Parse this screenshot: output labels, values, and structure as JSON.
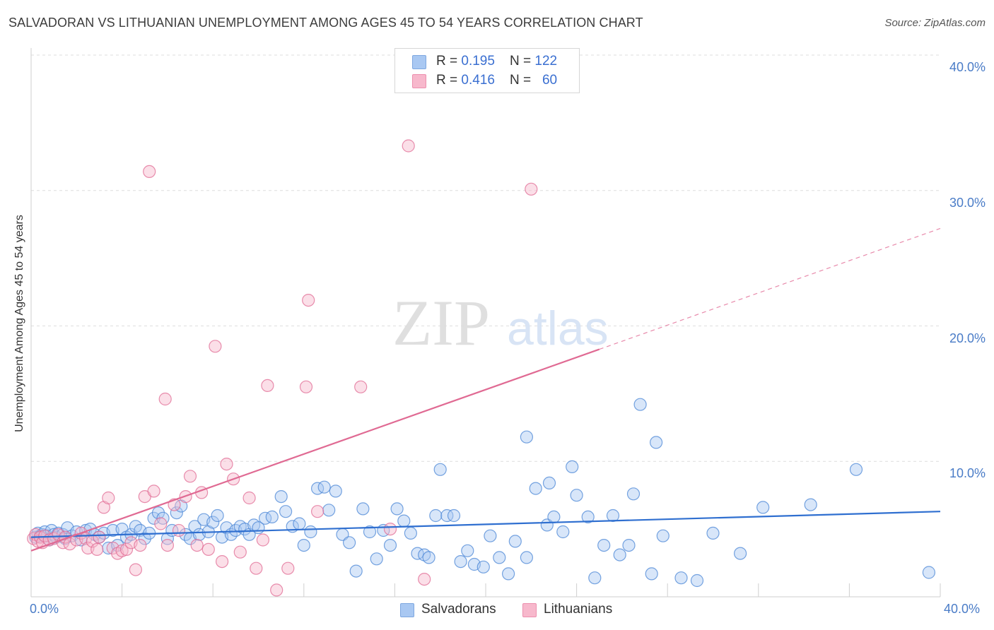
{
  "header": {
    "title": "SALVADORAN VS LITHUANIAN UNEMPLOYMENT AMONG AGES 45 TO 54 YEARS CORRELATION CHART",
    "source": "Source: ZipAtlas.com"
  },
  "watermark": {
    "zip": "ZIP",
    "atlas": "atlas"
  },
  "legend_top": {
    "rows": [
      {
        "r_label": "R = ",
        "r_value": "0.195",
        "n_label": "N = ",
        "n_value": "122",
        "color": "#a9c8f2"
      },
      {
        "r_label": "R = ",
        "r_value": "0.416",
        "n_label": "N = ",
        "n_value": "60",
        "color": "#f7b8cc"
      }
    ]
  },
  "legend_bottom": [
    {
      "label": "Salvadorans",
      "color": "#a9c8f2"
    },
    {
      "label": "Lithuanians",
      "color": "#f7b8cc"
    }
  ],
  "chart_data": {
    "type": "scatter",
    "title": "SALVADORAN VS LITHUANIAN UNEMPLOYMENT AMONG AGES 45 TO 54 YEARS CORRELATION CHART",
    "xlabel": "",
    "ylabel": "Unemployment Among Ages 45 to 54 years",
    "xlim": [
      0,
      40
    ],
    "ylim": [
      0,
      40
    ],
    "x_tick_labels": [
      "0.0%",
      "40.0%"
    ],
    "y_ticks": [
      10,
      20,
      30,
      40
    ],
    "y_tick_labels": [
      "10.0%",
      "20.0%",
      "30.0%",
      "40.0%"
    ],
    "grid": true,
    "legend_position": "top-center",
    "series": [
      {
        "name": "Salvadorans",
        "color": "#4a86d6",
        "fill": "#a9c8f2",
        "trend": {
          "x": [
            0,
            40
          ],
          "y": [
            4.4,
            6.3
          ],
          "style": "solid"
        },
        "points": [
          [
            0.2,
            4.4
          ],
          [
            0.3,
            4.7
          ],
          [
            0.4,
            4.5
          ],
          [
            0.5,
            4.6
          ],
          [
            0.6,
            4.8
          ],
          [
            0.7,
            4.5
          ],
          [
            0.8,
            4.2
          ],
          [
            0.9,
            4.9
          ],
          [
            1.0,
            4.6
          ],
          [
            1.1,
            4.4
          ],
          [
            1.2,
            4.7
          ],
          [
            1.4,
            4.6
          ],
          [
            1.5,
            4.3
          ],
          [
            1.6,
            5.1
          ],
          [
            1.8,
            4.5
          ],
          [
            2.0,
            4.8
          ],
          [
            2.2,
            4.2
          ],
          [
            2.4,
            4.9
          ],
          [
            2.6,
            5.0
          ],
          [
            2.8,
            4.6
          ],
          [
            3.0,
            4.4
          ],
          [
            3.2,
            4.7
          ],
          [
            3.4,
            3.6
          ],
          [
            3.6,
            4.9
          ],
          [
            3.8,
            3.8
          ],
          [
            4.0,
            5.0
          ],
          [
            4.2,
            4.4
          ],
          [
            4.4,
            4.6
          ],
          [
            4.6,
            5.2
          ],
          [
            4.8,
            4.9
          ],
          [
            5.0,
            4.3
          ],
          [
            5.2,
            4.7
          ],
          [
            5.4,
            5.8
          ],
          [
            5.6,
            6.2
          ],
          [
            5.8,
            5.8
          ],
          [
            6.0,
            4.3
          ],
          [
            6.2,
            4.9
          ],
          [
            6.4,
            6.2
          ],
          [
            6.6,
            6.7
          ],
          [
            6.8,
            4.6
          ],
          [
            7.0,
            4.3
          ],
          [
            7.2,
            5.2
          ],
          [
            7.4,
            4.6
          ],
          [
            7.6,
            5.7
          ],
          [
            7.8,
            4.8
          ],
          [
            8.0,
            5.5
          ],
          [
            8.2,
            6.0
          ],
          [
            8.4,
            4.4
          ],
          [
            8.6,
            5.1
          ],
          [
            8.8,
            4.6
          ],
          [
            9.0,
            4.9
          ],
          [
            9.2,
            5.2
          ],
          [
            9.4,
            5.0
          ],
          [
            9.6,
            4.6
          ],
          [
            9.8,
            5.3
          ],
          [
            10.0,
            5.1
          ],
          [
            10.3,
            5.8
          ],
          [
            10.6,
            5.9
          ],
          [
            11.0,
            7.4
          ],
          [
            11.2,
            6.3
          ],
          [
            11.5,
            5.2
          ],
          [
            11.8,
            5.4
          ],
          [
            12.0,
            3.8
          ],
          [
            12.3,
            4.8
          ],
          [
            12.6,
            8.0
          ],
          [
            12.9,
            8.1
          ],
          [
            13.1,
            6.4
          ],
          [
            13.4,
            7.8
          ],
          [
            13.7,
            4.6
          ],
          [
            14.0,
            4.0
          ],
          [
            14.3,
            1.9
          ],
          [
            14.6,
            6.5
          ],
          [
            14.9,
            4.8
          ],
          [
            15.2,
            2.8
          ],
          [
            15.5,
            4.9
          ],
          [
            15.8,
            3.8
          ],
          [
            16.1,
            6.5
          ],
          [
            16.4,
            5.6
          ],
          [
            16.7,
            4.7
          ],
          [
            17.0,
            3.2
          ],
          [
            17.3,
            3.1
          ],
          [
            17.5,
            2.9
          ],
          [
            17.8,
            6.0
          ],
          [
            18.0,
            9.4
          ],
          [
            18.3,
            6.0
          ],
          [
            18.6,
            6.0
          ],
          [
            18.9,
            2.6
          ],
          [
            19.2,
            3.4
          ],
          [
            19.5,
            2.4
          ],
          [
            19.9,
            2.2
          ],
          [
            20.2,
            4.5
          ],
          [
            20.6,
            2.9
          ],
          [
            21.0,
            1.7
          ],
          [
            21.3,
            4.1
          ],
          [
            21.8,
            11.8
          ],
          [
            21.8,
            2.9
          ],
          [
            22.2,
            8.0
          ],
          [
            22.7,
            5.3
          ],
          [
            22.8,
            8.4
          ],
          [
            23.0,
            5.9
          ],
          [
            23.4,
            4.8
          ],
          [
            23.8,
            9.6
          ],
          [
            24.0,
            7.5
          ],
          [
            24.5,
            5.9
          ],
          [
            24.8,
            1.4
          ],
          [
            25.2,
            3.8
          ],
          [
            25.6,
            6.0
          ],
          [
            25.9,
            3.1
          ],
          [
            26.3,
            3.8
          ],
          [
            26.5,
            7.6
          ],
          [
            26.8,
            14.2
          ],
          [
            27.3,
            1.7
          ],
          [
            27.5,
            11.4
          ],
          [
            27.8,
            4.5
          ],
          [
            28.6,
            1.4
          ],
          [
            29.3,
            1.2
          ],
          [
            30.0,
            4.7
          ],
          [
            31.2,
            3.2
          ],
          [
            32.2,
            6.6
          ],
          [
            34.3,
            6.8
          ],
          [
            36.3,
            9.4
          ],
          [
            39.5,
            1.8
          ]
        ]
      },
      {
        "name": "Lithuanians",
        "color": "#e06a93",
        "fill": "#f7b8cc",
        "trend": {
          "x": [
            0,
            40
          ],
          "y": [
            3.4,
            27.2
          ],
          "solid_until_x": 25,
          "style": "solid-then-dashed"
        },
        "points": [
          [
            0.1,
            4.3
          ],
          [
            0.2,
            4.6
          ],
          [
            0.3,
            4.1
          ],
          [
            0.4,
            4.4
          ],
          [
            0.5,
            4.0
          ],
          [
            0.6,
            4.5
          ],
          [
            0.8,
            4.2
          ],
          [
            1.0,
            4.3
          ],
          [
            1.2,
            4.6
          ],
          [
            1.4,
            4.0
          ],
          [
            1.5,
            4.4
          ],
          [
            1.7,
            3.9
          ],
          [
            2.0,
            4.2
          ],
          [
            2.2,
            4.7
          ],
          [
            2.4,
            4.3
          ],
          [
            2.5,
            3.6
          ],
          [
            2.7,
            4.1
          ],
          [
            2.9,
            3.5
          ],
          [
            3.0,
            4.4
          ],
          [
            3.2,
            6.6
          ],
          [
            3.4,
            7.3
          ],
          [
            3.6,
            3.6
          ],
          [
            3.8,
            3.2
          ],
          [
            4.0,
            3.4
          ],
          [
            4.2,
            3.5
          ],
          [
            4.4,
            4.0
          ],
          [
            4.6,
            2.0
          ],
          [
            4.8,
            3.8
          ],
          [
            5.0,
            7.4
          ],
          [
            5.2,
            31.4
          ],
          [
            5.4,
            7.8
          ],
          [
            5.7,
            5.4
          ],
          [
            5.9,
            14.6
          ],
          [
            6.0,
            3.8
          ],
          [
            6.3,
            6.8
          ],
          [
            6.5,
            4.9
          ],
          [
            6.8,
            7.4
          ],
          [
            7.0,
            8.9
          ],
          [
            7.3,
            3.8
          ],
          [
            7.5,
            7.7
          ],
          [
            7.8,
            3.5
          ],
          [
            8.1,
            18.5
          ],
          [
            8.4,
            2.6
          ],
          [
            8.6,
            9.8
          ],
          [
            8.9,
            8.7
          ],
          [
            9.2,
            3.3
          ],
          [
            9.6,
            7.3
          ],
          [
            9.9,
            2.1
          ],
          [
            10.2,
            4.2
          ],
          [
            10.4,
            15.6
          ],
          [
            10.8,
            0.5
          ],
          [
            11.3,
            2.1
          ],
          [
            12.1,
            15.5
          ],
          [
            12.6,
            6.3
          ],
          [
            12.2,
            21.9
          ],
          [
            14.5,
            15.5
          ],
          [
            15.8,
            5.0
          ],
          [
            16.6,
            33.3
          ],
          [
            17.3,
            1.3
          ],
          [
            22.0,
            30.1
          ]
        ]
      }
    ]
  }
}
